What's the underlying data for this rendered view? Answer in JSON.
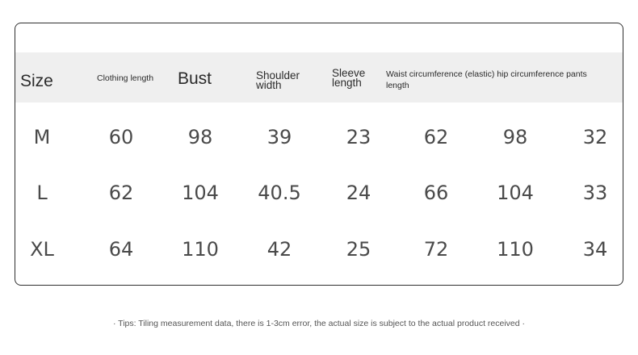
{
  "headers": {
    "size": "Size",
    "clothing_length": "Clothing length",
    "bust": "Bust",
    "shoulder_width": "Shoulder width",
    "sleeve_length": "Sleeve length",
    "waist_hip_pants": "Waist circumference (elastic) hip circumference pants length"
  },
  "rows": [
    {
      "size": "M",
      "values": [
        "60",
        "98",
        "39",
        "23",
        "62",
        "98",
        "32"
      ]
    },
    {
      "size": "L",
      "values": [
        "62",
        "104",
        "40.5",
        "24",
        "66",
        "104",
        "33"
      ]
    },
    {
      "size": "XL",
      "values": [
        "64",
        "110",
        "42",
        "25",
        "72",
        "110",
        "34"
      ]
    }
  ],
  "tips": "· Tips: Tiling measurement data, there is 1-3cm error, the actual size is subject to the actual product received ·"
}
